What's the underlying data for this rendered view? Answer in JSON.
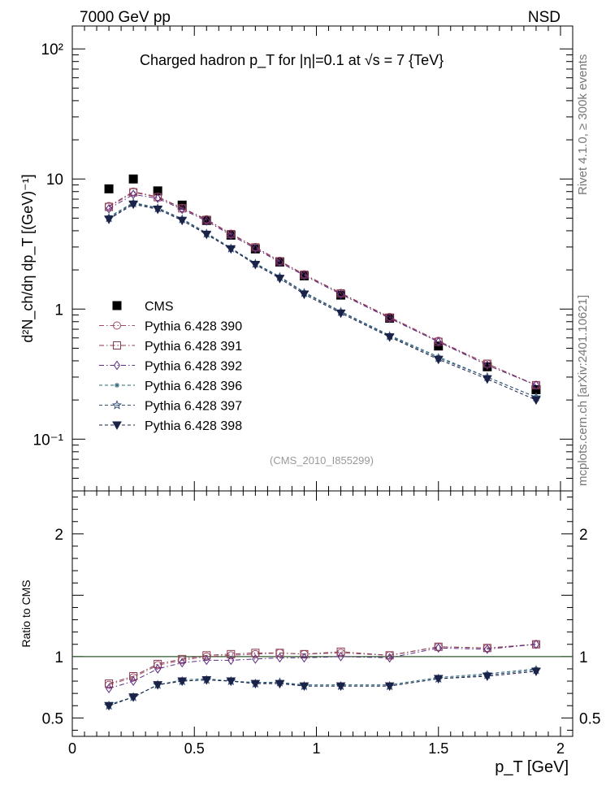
{
  "header": {
    "left": "7000 GeV pp",
    "right": "NSD"
  },
  "title": "Charged hadron p_T for |η|=0.1 at √s = 7 {TeV}",
  "watermark": "(CMS_2010_I855299)",
  "side_label_top": "Rivet 4.1.0, ≥ 300k events",
  "side_label_bottom": "mcplots.cern.ch [arXiv:2401.10621]",
  "colors": {
    "cms": "#000000",
    "p390": "#9e4a6e",
    "p391": "#8a3a4a",
    "p392": "#5a2a82",
    "p396": "#2a6a7a",
    "p397": "#33527a",
    "p398": "#1a2248",
    "refline": "#2e5a2e"
  },
  "chart_data": [
    {
      "type": "scatter",
      "panel": "main",
      "xlabel": "p_T [GeV]",
      "ylabel": "d²N_ch/dη dp_T [(GeV)⁻¹]",
      "yscale": "log",
      "xlim": [
        0,
        2.05
      ],
      "ylim": [
        0.04,
        150
      ],
      "y_ticks": [
        {
          "value": 0.1,
          "label": "10⁻¹"
        },
        {
          "value": 1,
          "label": "1"
        },
        {
          "value": 10,
          "label": "10"
        },
        {
          "value": 100,
          "label": "10²"
        }
      ],
      "x": [
        0.15,
        0.25,
        0.35,
        0.45,
        0.55,
        0.65,
        0.75,
        0.85,
        0.95,
        1.1,
        1.3,
        1.5,
        1.7,
        1.9
      ],
      "series": [
        {
          "name": "CMS",
          "marker": "square-filled",
          "style": "points",
          "color_key": "cms",
          "values": [
            8.4,
            10.0,
            8.1,
            6.3,
            4.8,
            3.7,
            2.9,
            2.3,
            1.8,
            1.28,
            0.85,
            0.52,
            0.36,
            0.24
          ]
        },
        {
          "name": "Pythia 6.428 390",
          "marker": "circle-open",
          "style": "dashdot",
          "color_key": "p390",
          "values": [
            6.2,
            8.0,
            7.3,
            6.0,
            4.9,
            3.8,
            3.0,
            2.35,
            1.85,
            1.33,
            0.87,
            0.57,
            0.38,
            0.26
          ]
        },
        {
          "name": "Pythia 6.428 391",
          "marker": "square-open",
          "style": "dashdot",
          "color_key": "p391",
          "values": [
            6.1,
            7.9,
            7.25,
            5.95,
            4.85,
            3.77,
            2.98,
            2.33,
            1.84,
            1.32,
            0.86,
            0.56,
            0.38,
            0.26
          ]
        },
        {
          "name": "Pythia 6.428 392",
          "marker": "diamond-open",
          "style": "dashdot",
          "color_key": "p392",
          "values": [
            5.9,
            7.6,
            7.1,
            5.85,
            4.75,
            3.7,
            2.92,
            2.29,
            1.81,
            1.3,
            0.85,
            0.56,
            0.37,
            0.26
          ]
        },
        {
          "name": "Pythia 6.428 396",
          "marker": "star-small",
          "style": "dashed",
          "color_key": "p396",
          "values": [
            5.1,
            6.6,
            6.0,
            4.95,
            3.85,
            2.95,
            2.25,
            1.78,
            1.35,
            0.96,
            0.63,
            0.43,
            0.3,
            0.21
          ]
        },
        {
          "name": "Pythia 6.428 397",
          "marker": "star-open",
          "style": "dashed",
          "color_key": "p397",
          "values": [
            5.0,
            6.5,
            5.95,
            4.9,
            3.8,
            2.92,
            2.23,
            1.76,
            1.33,
            0.95,
            0.62,
            0.42,
            0.3,
            0.21
          ]
        },
        {
          "name": "Pythia 6.428 398",
          "marker": "triangle-down-filled",
          "style": "dashed",
          "color_key": "p398",
          "values": [
            4.9,
            6.4,
            5.85,
            4.8,
            3.75,
            2.9,
            2.2,
            1.72,
            1.3,
            0.93,
            0.61,
            0.41,
            0.29,
            0.2
          ]
        }
      ],
      "legend_position": "middle-left"
    },
    {
      "type": "line",
      "panel": "ratio",
      "xlabel": "p_T [GeV]",
      "ylabel": "Ratio to CMS",
      "yscale": "linear",
      "xlim": [
        0,
        2.05
      ],
      "ylim": [
        0.35,
        2.35
      ],
      "y_ticks": [
        {
          "value": 0.5,
          "label": "0.5"
        },
        {
          "value": 1,
          "label": "1"
        },
        {
          "value": 2,
          "label": "2"
        }
      ],
      "x_ticks": [
        {
          "value": 0,
          "label": "0"
        },
        {
          "value": 0.5,
          "label": "0.5"
        },
        {
          "value": 1,
          "label": "1"
        },
        {
          "value": 1.5,
          "label": "1.5"
        },
        {
          "value": 2,
          "label": "2"
        }
      ],
      "reference": 1,
      "x": [
        0.15,
        0.25,
        0.35,
        0.45,
        0.55,
        0.65,
        0.75,
        0.85,
        0.95,
        1.1,
        1.3,
        1.5,
        1.7,
        1.9
      ],
      "series": [
        {
          "name": "Pythia 6.428 390",
          "marker": "circle-open",
          "style": "dashdot",
          "color_key": "p390",
          "values": [
            0.77,
            0.83,
            0.93,
            0.97,
            1.0,
            1.01,
            1.02,
            1.03,
            1.02,
            1.03,
            1.01,
            1.08,
            1.07,
            1.1
          ]
        },
        {
          "name": "Pythia 6.428 391",
          "marker": "square-open",
          "style": "dashdot",
          "color_key": "p391",
          "values": [
            0.78,
            0.84,
            0.94,
            0.98,
            1.01,
            1.02,
            1.03,
            1.03,
            1.02,
            1.04,
            1.01,
            1.08,
            1.07,
            1.1
          ]
        },
        {
          "name": "Pythia 6.428 392",
          "marker": "diamond-open",
          "style": "dashdot",
          "color_key": "p392",
          "values": [
            0.74,
            0.8,
            0.9,
            0.95,
            0.97,
            0.97,
            0.98,
            0.99,
            0.99,
            1.0,
            0.99,
            1.07,
            1.06,
            1.1
          ]
        },
        {
          "name": "Pythia 6.428 396",
          "marker": "star-small",
          "style": "dashed",
          "color_key": "p396",
          "values": [
            0.61,
            0.67,
            0.77,
            0.81,
            0.82,
            0.8,
            0.79,
            0.79,
            0.77,
            0.77,
            0.77,
            0.83,
            0.86,
            0.9
          ]
        },
        {
          "name": "Pythia 6.428 397",
          "marker": "star-open",
          "style": "dashed",
          "color_key": "p397",
          "values": [
            0.6,
            0.67,
            0.77,
            0.8,
            0.81,
            0.8,
            0.78,
            0.79,
            0.76,
            0.76,
            0.76,
            0.82,
            0.85,
            0.89
          ]
        },
        {
          "name": "Pythia 6.428 398",
          "marker": "triangle-down-filled",
          "style": "dashed",
          "color_key": "p398",
          "values": [
            0.6,
            0.67,
            0.77,
            0.8,
            0.81,
            0.8,
            0.78,
            0.78,
            0.76,
            0.76,
            0.76,
            0.82,
            0.84,
            0.88
          ]
        }
      ]
    }
  ]
}
